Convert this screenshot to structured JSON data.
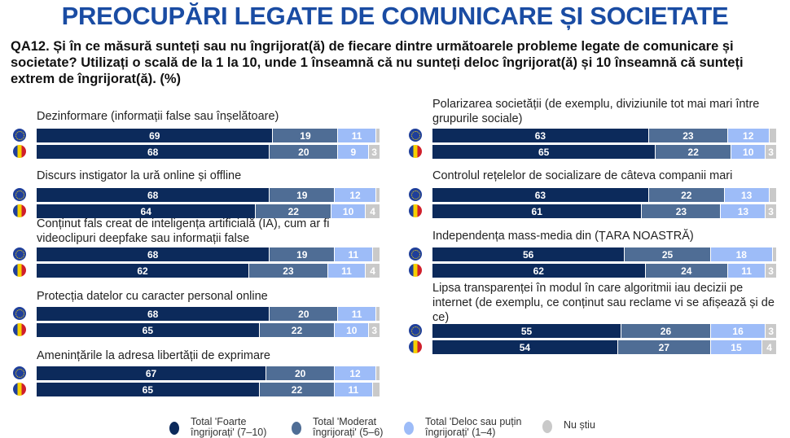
{
  "title": "PREOCUPĂRI LEGATE DE COMUNICARE ȘI SOCIETATE",
  "question": "QA12. Și în ce măsură sunteți sau nu îngrijorat(ă) de fiecare dintre următoarele probleme legate de comunicare și societate? Utilizați o scală de la 1 la 10, unde 1 înseamnă că nu sunteți deloc îngrijorat(ă) și 10 înseamnă că sunteți extrem de îngrijorat(ă). (%)",
  "colors": {
    "foarte": "#0c2a5b",
    "moderat": "#4f6d95",
    "deloc": "#9dbcf8",
    "nu_stiu": "#c9c9c9",
    "title": "#1a4ca3"
  },
  "chart_data": {
    "type": "bar",
    "orientation": "horizontal",
    "stacked": true,
    "xlim": [
      0,
      100
    ],
    "legend_placement": "bottom",
    "series_names": [
      "Total 'Foarte îngrijorați' (7–10)",
      "Total 'Moderat îngrijorați' (5–6)",
      "Total 'Deloc sau puțin îngrijorați' (1–4)",
      "Nu știu"
    ],
    "rows": [
      "EU",
      "RO"
    ],
    "items": [
      {
        "label": "Dezinformare (informații false sau înșelătoare)",
        "eu": [
          69,
          19,
          11,
          1
        ],
        "ro": [
          68,
          20,
          9,
          3
        ],
        "eu_dk_shown": false,
        "ro_dk_shown": true
      },
      {
        "label": "Discurs instigator la ură online și offline",
        "eu": [
          68,
          19,
          12,
          1
        ],
        "ro": [
          64,
          22,
          10,
          4
        ],
        "eu_dk_shown": false,
        "ro_dk_shown": true
      },
      {
        "label": "Conținut fals creat de inteligența artificială (IA), cum ar fi videoclipuri deepfake sau informații false",
        "eu": [
          68,
          19,
          11,
          2
        ],
        "ro": [
          62,
          23,
          11,
          4
        ],
        "eu_dk_shown": false,
        "ro_dk_shown": true
      },
      {
        "label": "Protecția datelor cu caracter personal online",
        "eu": [
          68,
          20,
          11,
          1
        ],
        "ro": [
          65,
          22,
          10,
          3
        ],
        "eu_dk_shown": false,
        "ro_dk_shown": true
      },
      {
        "label": "Amenințările la adresa libertății de exprimare",
        "eu": [
          67,
          20,
          12,
          1
        ],
        "ro": [
          65,
          22,
          11,
          2
        ],
        "eu_dk_shown": false,
        "ro_dk_shown": false
      },
      {
        "label": "Polarizarea societății (de exemplu, diviziunile tot mai mari între grupurile sociale)",
        "eu": [
          63,
          23,
          12,
          2
        ],
        "ro": [
          65,
          22,
          10,
          3
        ],
        "eu_dk_shown": false,
        "ro_dk_shown": true
      },
      {
        "label": "Controlul rețelelor de socializare de câteva companii mari",
        "eu": [
          63,
          22,
          13,
          2
        ],
        "ro": [
          61,
          23,
          13,
          3
        ],
        "eu_dk_shown": false,
        "ro_dk_shown": true
      },
      {
        "label": "Independența mass-media din (ȚARA NOASTRĂ)",
        "eu": [
          56,
          25,
          18,
          1
        ],
        "ro": [
          62,
          24,
          11,
          3
        ],
        "eu_dk_shown": false,
        "ro_dk_shown": true
      },
      {
        "label": "Lipsa transparenței în modul în care algoritmii iau decizii pe internet (de exemplu, ce conținut sau reclame vi se afișează și de ce)",
        "eu": [
          55,
          26,
          16,
          3
        ],
        "ro": [
          54,
          27,
          15,
          4
        ],
        "eu_dk_shown": true,
        "ro_dk_shown": true
      }
    ]
  }
}
